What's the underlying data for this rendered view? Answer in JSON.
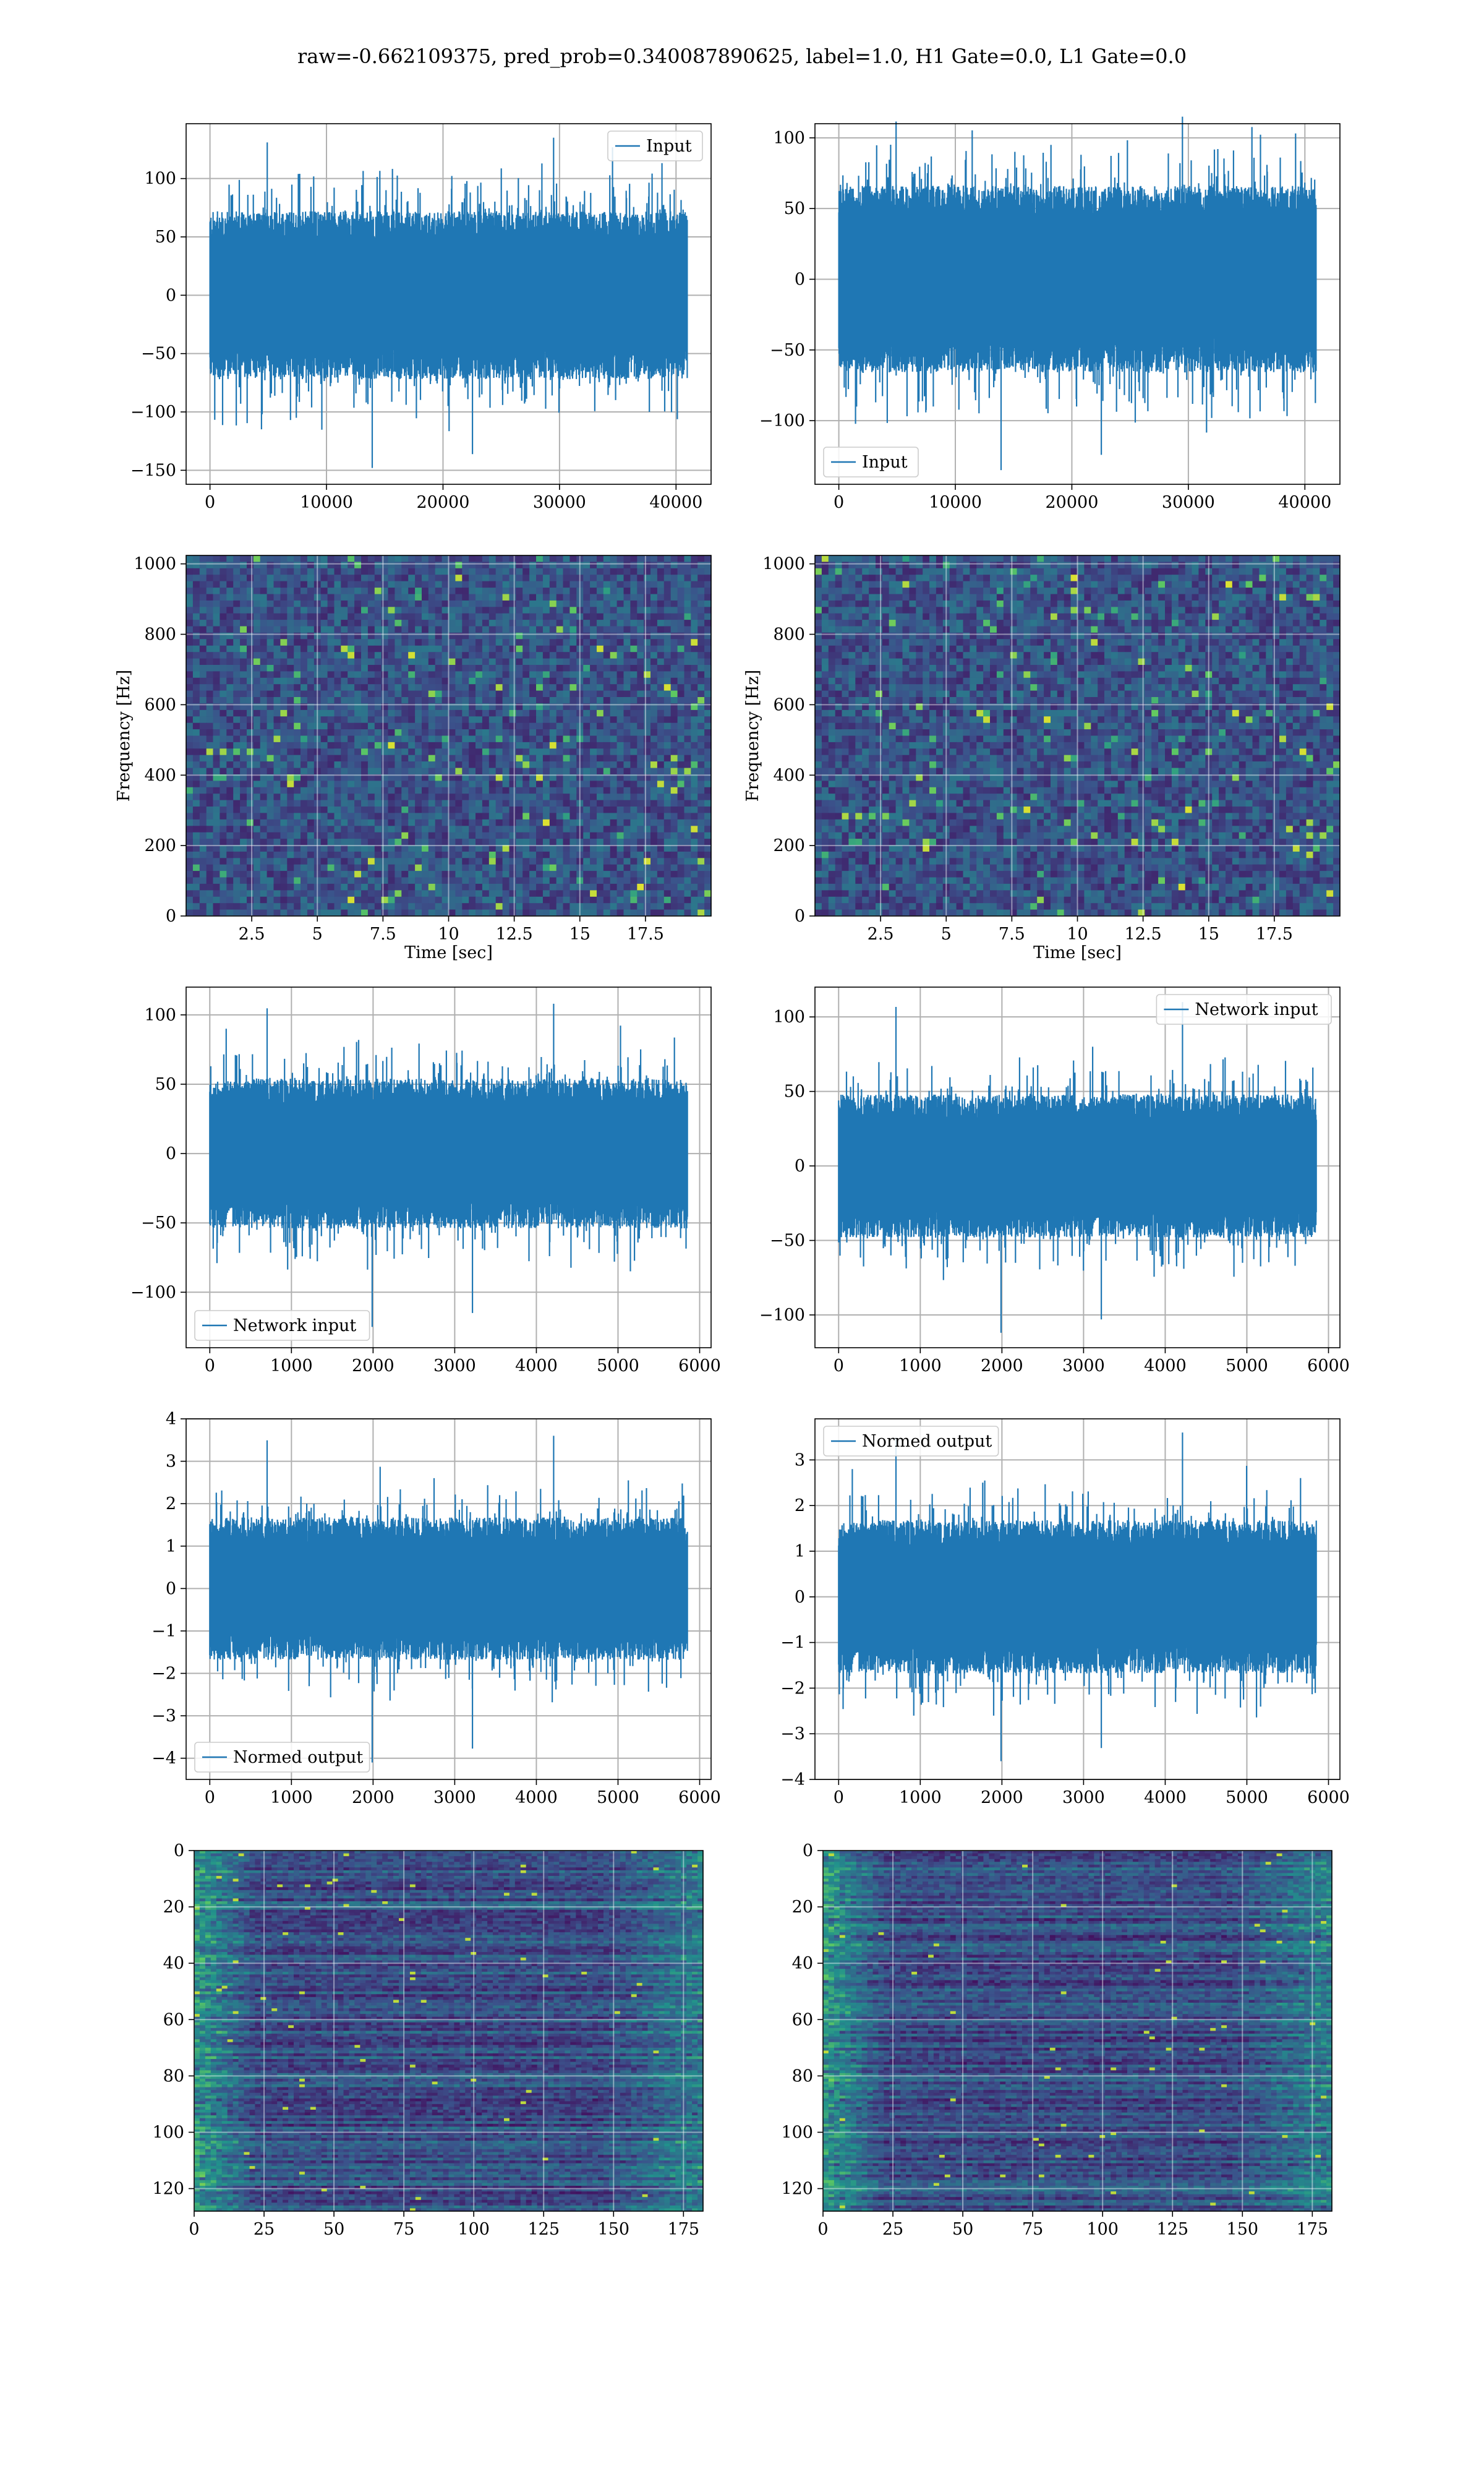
{
  "figure": {
    "title": "raw=-0.662109375, pred_prob=0.340087890625, label=1.0, H1 Gate=0.0, L1 Gate=0.0",
    "colors": {
      "line": "#1f77b4",
      "viridis_low": "#440154",
      "viridis_mid": "#21918c",
      "viridis_high": "#fde725"
    }
  },
  "chart_data": [
    {
      "id": "input-left",
      "type": "line",
      "series": [
        {
          "name": "Input"
        }
      ],
      "x_range": [
        0,
        40960
      ],
      "y_envelope": [
        -60,
        60
      ],
      "y_extremes": [
        -148,
        135
      ],
      "xlim": [
        -2048,
        43008
      ],
      "ylim": [
        -162,
        147
      ],
      "xticks": [
        0,
        10000,
        20000,
        30000,
        40000
      ],
      "yticks": [
        -150,
        -100,
        -50,
        0,
        50,
        100
      ],
      "legend": "upper right",
      "grid": true
    },
    {
      "id": "input-right",
      "type": "line",
      "series": [
        {
          "name": "Input"
        }
      ],
      "x_range": [
        0,
        40960
      ],
      "y_envelope": [
        -55,
        55
      ],
      "y_extremes": [
        -135,
        115
      ],
      "xlim": [
        -2048,
        43008
      ],
      "ylim": [
        -145,
        110
      ],
      "xticks": [
        0,
        10000,
        20000,
        30000,
        40000
      ],
      "yticks": [
        -100,
        -50,
        0,
        50,
        100
      ],
      "legend": "lower left",
      "grid": true
    },
    {
      "id": "spectrogram-left",
      "type": "heatmap",
      "xlabel": "Time [sec]",
      "ylabel": "Frequency [Hz]",
      "xlim": [
        0,
        20
      ],
      "ylim": [
        0,
        1024
      ],
      "xticks": [
        2.5,
        5.0,
        7.5,
        10.0,
        12.5,
        15.0,
        17.5
      ],
      "yticks": [
        0,
        200,
        400,
        600,
        800,
        1000
      ],
      "grid": true
    },
    {
      "id": "spectrogram-right",
      "type": "heatmap",
      "xlabel": "Time [sec]",
      "ylabel": "Frequency [Hz]",
      "xlim": [
        0,
        20
      ],
      "ylim": [
        0,
        1024
      ],
      "xticks": [
        2.5,
        5.0,
        7.5,
        10.0,
        12.5,
        15.0,
        17.5
      ],
      "yticks": [
        0,
        200,
        400,
        600,
        800,
        1000
      ],
      "grid": true
    },
    {
      "id": "network-input-left",
      "type": "line",
      "series": [
        {
          "name": "Network input"
        }
      ],
      "x_range": [
        0,
        5850
      ],
      "y_envelope": [
        -45,
        45
      ],
      "y_extremes": [
        -125,
        108
      ],
      "xlim": [
        -290,
        6140
      ],
      "ylim": [
        -140,
        120
      ],
      "xticks": [
        0,
        1000,
        2000,
        3000,
        4000,
        5000,
        6000
      ],
      "yticks": [
        -100,
        -50,
        0,
        50,
        100
      ],
      "legend": "lower left",
      "grid": true
    },
    {
      "id": "network-input-right",
      "type": "line",
      "series": [
        {
          "name": "Network input"
        }
      ],
      "x_range": [
        0,
        5850
      ],
      "y_envelope": [
        -40,
        40
      ],
      "y_extremes": [
        -112,
        110
      ],
      "xlim": [
        -290,
        6140
      ],
      "ylim": [
        -122,
        120
      ],
      "xticks": [
        0,
        1000,
        2000,
        3000,
        4000,
        5000,
        6000
      ],
      "yticks": [
        -100,
        -50,
        0,
        50,
        100
      ],
      "legend": "upper right",
      "grid": true
    },
    {
      "id": "normed-output-left",
      "type": "line",
      "series": [
        {
          "name": "Normed output"
        }
      ],
      "x_range": [
        0,
        5850
      ],
      "y_envelope": [
        -1.4,
        1.4
      ],
      "y_extremes": [
        -4.1,
        3.6
      ],
      "xlim": [
        -290,
        6140
      ],
      "ylim": [
        -4.5,
        4
      ],
      "xticks": [
        0,
        1000,
        2000,
        3000,
        4000,
        5000,
        6000
      ],
      "yticks": [
        -4,
        -3,
        -2,
        -1,
        0,
        1,
        2,
        3,
        4
      ],
      "legend": "lower left",
      "grid": true
    },
    {
      "id": "normed-output-right",
      "type": "line",
      "series": [
        {
          "name": "Normed output"
        }
      ],
      "x_range": [
        0,
        5850
      ],
      "y_envelope": [
        -1.4,
        1.4
      ],
      "y_extremes": [
        -3.6,
        3.6
      ],
      "xlim": [
        -290,
        6140
      ],
      "ylim": [
        -4,
        3.9
      ],
      "xticks": [
        0,
        1000,
        2000,
        3000,
        4000,
        5000,
        6000
      ],
      "yticks": [
        -4,
        -3,
        -2,
        -1,
        0,
        1,
        2,
        3
      ],
      "legend": "upper left",
      "grid": true
    },
    {
      "id": "feature-map-left",
      "type": "heatmap",
      "xlim": [
        0,
        182
      ],
      "ylim": [
        128,
        0
      ],
      "xticks": [
        0,
        25,
        50,
        75,
        100,
        125,
        150,
        175
      ],
      "yticks": [
        0,
        20,
        40,
        60,
        80,
        100,
        120
      ],
      "grid": true
    },
    {
      "id": "feature-map-right",
      "type": "heatmap",
      "xlim": [
        0,
        182
      ],
      "ylim": [
        128,
        0
      ],
      "xticks": [
        0,
        25,
        50,
        75,
        100,
        125,
        150,
        175
      ],
      "yticks": [
        0,
        20,
        40,
        60,
        80,
        100,
        120
      ],
      "grid": true
    }
  ]
}
